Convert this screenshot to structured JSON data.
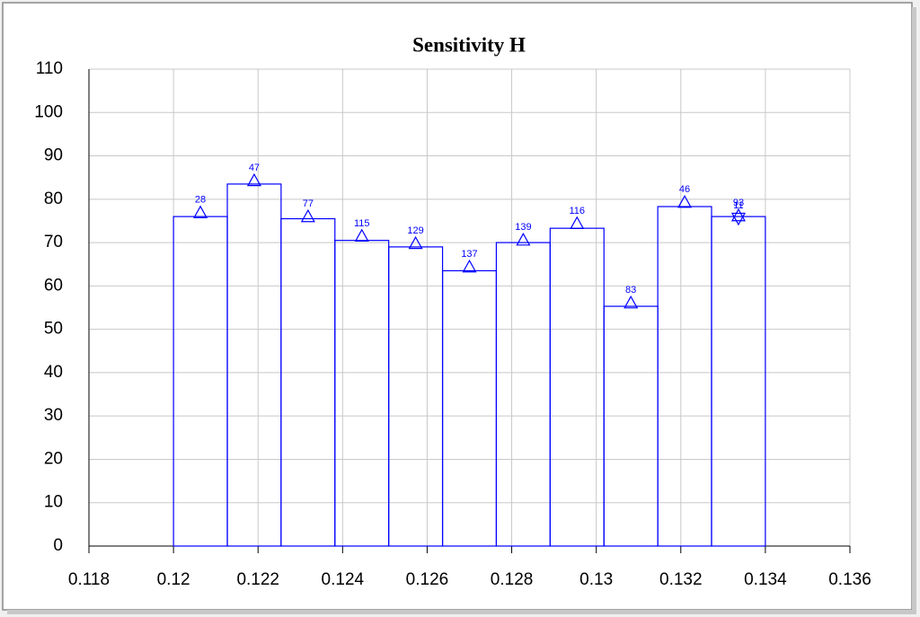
{
  "chart_data": {
    "type": "histogram",
    "title": "Sensitivity H",
    "bins": [
      0.12,
      0.121273,
      0.122545,
      0.123818,
      0.125091,
      0.126364,
      0.127636,
      0.128909,
      0.130182,
      0.131455,
      0.132727,
      0.134
    ],
    "values": [
      76,
      83.5,
      75.5,
      70.5,
      69,
      63.5,
      70,
      73.3,
      55.3,
      78.3,
      76
    ],
    "color": "#0000ff",
    "markers": {
      "x": [
        0.120636,
        0.121909,
        0.123182,
        0.124455,
        0.125727,
        0.127,
        0.128273,
        0.129545,
        0.130818,
        0.132091,
        0.133364
      ],
      "y": [
        76.9,
        84.3,
        76,
        71.5,
        69.8,
        64.4,
        70.6,
        74.4,
        56.1,
        79.3,
        76.2
      ],
      "labels": [
        28,
        47,
        77,
        115,
        129,
        137,
        139,
        116,
        83,
        46,
        93
      ]
    },
    "markers_down": {
      "x": [
        0.133364
      ],
      "y": [
        75.6
      ],
      "labels": [
        11
      ]
    },
    "xlim": [
      0.118,
      0.136
    ],
    "xticks": [
      0.118,
      0.12,
      0.122,
      0.124,
      0.126,
      0.128,
      0.13,
      0.132,
      0.134,
      0.136
    ],
    "ylim": [
      0,
      110
    ],
    "yticks": [
      0,
      10,
      20,
      30,
      40,
      50,
      60,
      70,
      80,
      90,
      100,
      110
    ],
    "grid": true
  }
}
